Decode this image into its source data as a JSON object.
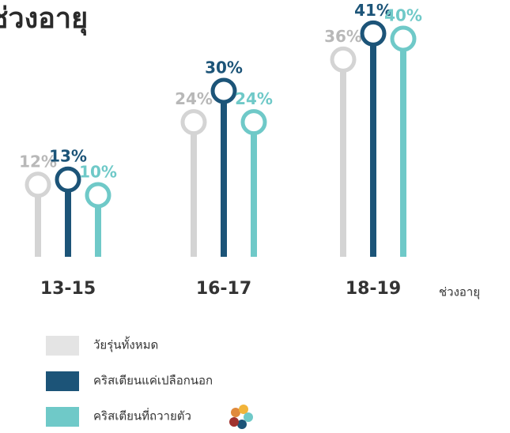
{
  "chart_data": {
    "type": "lollipop",
    "title": "ช่วงอายุ",
    "x_label": "ช่วงอายุ",
    "categories": [
      "13-15",
      "16-17",
      "18-19"
    ],
    "series": [
      {
        "name": "วัยรุ่นทั้งหมด",
        "color": "#d4d4d4",
        "values": [
          12,
          24,
          36
        ],
        "value_labels": [
          "12%",
          "24%",
          "36%"
        ]
      },
      {
        "name": "คริสเตียนแค่เปลือกนอก",
        "color": "#1c5478",
        "values": [
          13,
          30,
          41
        ],
        "value_labels": [
          "13%",
          "30%",
          "41%"
        ]
      },
      {
        "name": "คริสเตียนที่ถวายตัว",
        "color": "#6fc9c8",
        "values": [
          10,
          24,
          40
        ],
        "value_labels": [
          "10%",
          "24%",
          "40%"
        ]
      }
    ]
  }
}
